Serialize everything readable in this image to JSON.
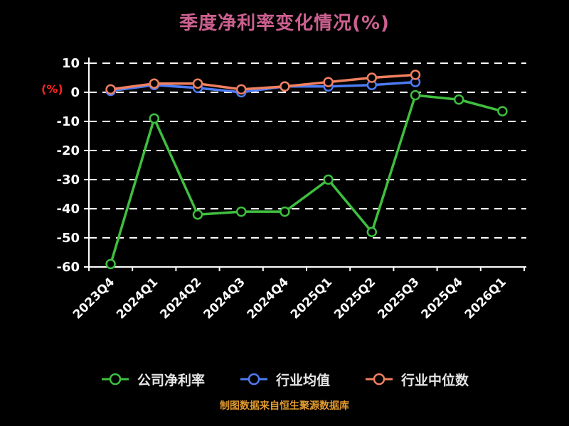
{
  "title": {
    "text": "季度净利率变化情况(%)",
    "color": "#cc6090"
  },
  "caption": {
    "text": "制图数据来自恒生聚源数据库",
    "color": "#e09a2f"
  },
  "chart_data": {
    "type": "line",
    "title": "季度净利率变化情况(%)",
    "categories": [
      "2023Q4",
      "2024Q1",
      "2024Q2",
      "2024Q3",
      "2024Q4",
      "2025Q1",
      "2025Q2",
      "2025Q3",
      "2025Q4",
      "2026Q1"
    ],
    "series": [
      {
        "name": "公司净利率",
        "color": "#3fbf3f",
        "values": [
          -59,
          -9,
          -42,
          -41,
          -41,
          -30,
          -48,
          -1,
          -2.5,
          -6.5
        ]
      },
      {
        "name": "行业均值",
        "color": "#4d7bf3",
        "values": [
          0.5,
          2.5,
          1.5,
          0,
          2,
          2,
          2.5,
          3.5,
          null,
          null
        ]
      },
      {
        "name": "行业中位数",
        "color": "#f08060",
        "values": [
          1,
          3,
          3,
          1,
          2,
          3.5,
          5,
          6,
          null,
          null
        ]
      }
    ],
    "xlabel": "",
    "ylabel": "(%)",
    "ylabel_color": "#ff2222",
    "ylim": [
      -60,
      10
    ],
    "yticks": [
      10,
      0,
      -10,
      -20,
      -30,
      -40,
      -50,
      -60
    ],
    "grid": "dashed-horizontal",
    "grid_color": "#ffffff",
    "axis_color": "#ffffff",
    "tick_label_color": "#ffffff",
    "legend_position": "bottom"
  }
}
